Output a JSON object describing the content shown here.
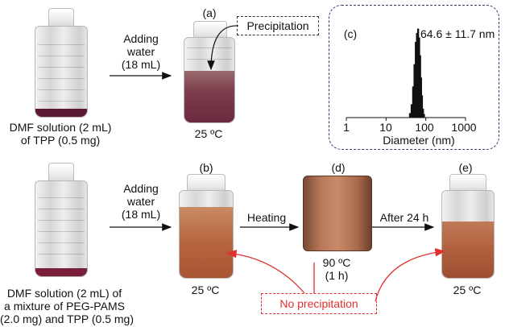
{
  "panels": {
    "a_label": "(a)",
    "b_label": "(b)",
    "c_label": "(c)",
    "d_label": "(d)",
    "e_label": "(e)"
  },
  "top_row": {
    "step1_line1": "Adding",
    "step1_line2": "water",
    "step1_line3": "(18 mL)",
    "precipitation_label": "Precipitation",
    "caption_line1": "DMF solution (2 mL)",
    "caption_line2": "of TPP (0.5 mg)",
    "temp_a": "25 ºC"
  },
  "bottom_row": {
    "step1_line1": "Adding",
    "step1_line2": "water",
    "step1_line3": "(18 mL)",
    "heating_label": "Heating",
    "after_label": "After 24 h",
    "caption_line1": "DMF solution (2 mL) of",
    "caption_line2": "a mixture of PEG-PAMS",
    "caption_line3": "(2.0 mg) and TPP (0.5 mg)",
    "temp_b": "25 ºC",
    "temp_d": "90 ºC",
    "time_d": "(1 h)",
    "temp_e": "25 ºC",
    "no_precipitation_label": "No precipitation"
  },
  "chart_data": {
    "type": "bar",
    "title": "",
    "annotation": "64.6 ± 11.7 nm",
    "xlabel": "Diameter (nm)",
    "ylabel": "",
    "x_scale": "log",
    "xlim": [
      1,
      1000
    ],
    "x_ticks": [
      "1",
      "10",
      "100",
      "1000"
    ],
    "x": [
      40,
      44,
      48,
      52,
      56,
      60,
      64,
      68,
      72,
      76,
      80,
      85,
      90
    ],
    "values": [
      0.05,
      0.15,
      0.35,
      0.6,
      0.85,
      0.95,
      1.0,
      0.9,
      0.7,
      0.45,
      0.25,
      0.1,
      0.04
    ],
    "ylim": [
      0,
      1.05
    ]
  },
  "colors": {
    "purple_liquid": "#5a1a33",
    "orange_liquid": "#b7653f",
    "red": "#e03030",
    "dashdot_border": "#2a3a7a"
  }
}
